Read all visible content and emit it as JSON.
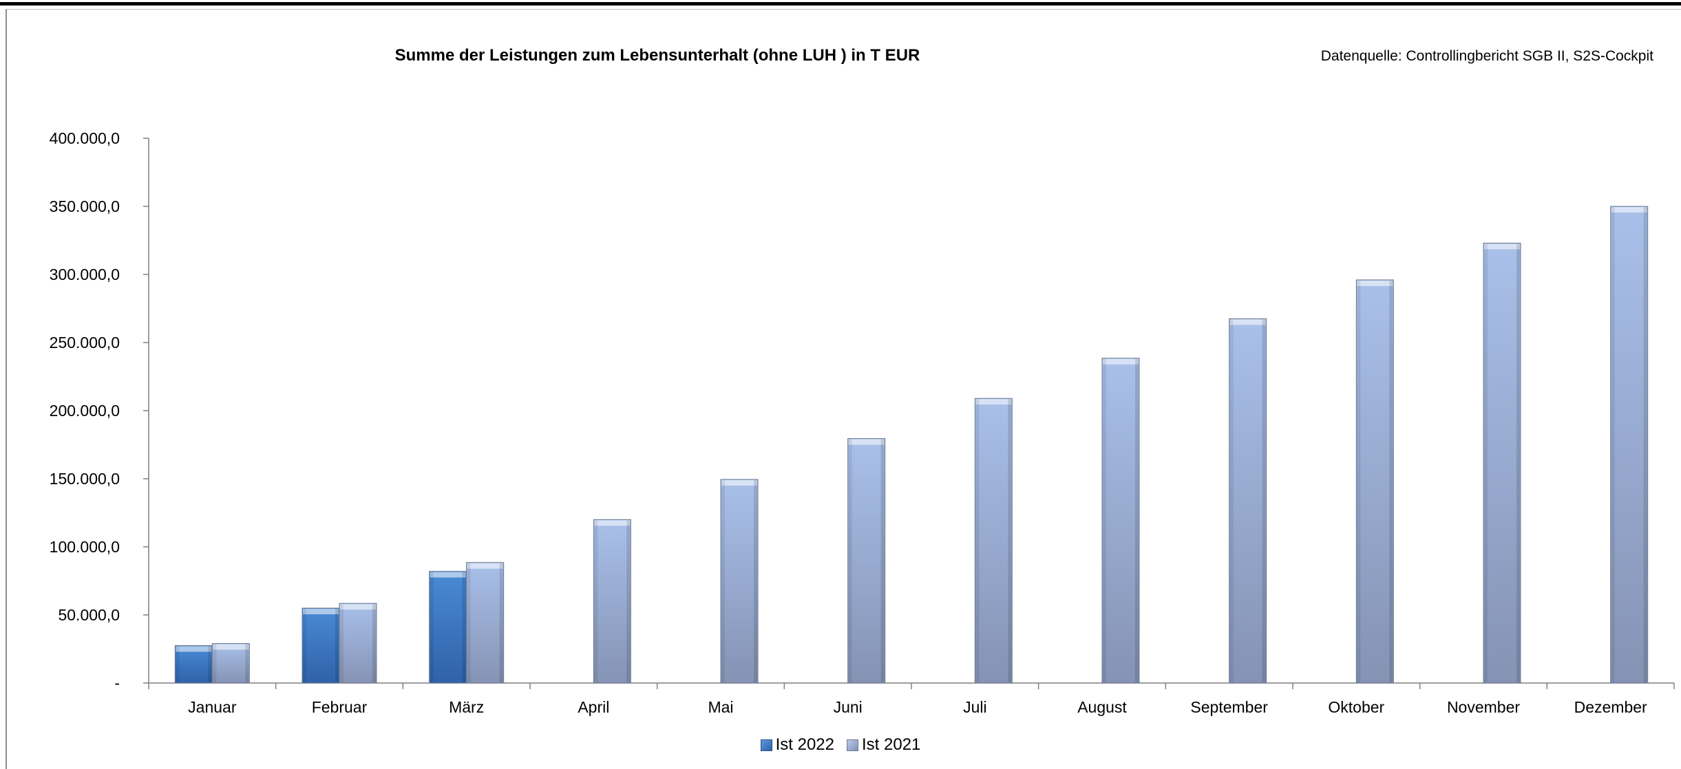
{
  "chart_data": {
    "type": "bar",
    "title": "Summe der Leistungen zum Lebensunterhalt (ohne LUH ) in T EUR",
    "source_note": "Datenquelle: Controllingbericht SGB II, S2S-Cockpit",
    "categories": [
      "Januar",
      "Februar",
      "März",
      "April",
      "Mai",
      "Juni",
      "Juli",
      "August",
      "September",
      "Oktober",
      "November",
      "Dezember"
    ],
    "series": [
      {
        "name": "Ist 2022",
        "color": "#3a78c8",
        "values": [
          27500,
          55000,
          82000,
          null,
          null,
          null,
          null,
          null,
          null,
          null,
          null,
          null
        ]
      },
      {
        "name": "Ist 2021",
        "color": "#9fb3db",
        "values": [
          29000,
          58500,
          88500,
          120000,
          149500,
          179500,
          209000,
          238500,
          267500,
          296000,
          323000,
          350000
        ]
      }
    ],
    "ylim": [
      0,
      400000
    ],
    "y_ticks": [
      0,
      50000,
      100000,
      150000,
      200000,
      250000,
      300000,
      350000,
      400000
    ],
    "y_tick_labels": [
      "-",
      "50.000,0",
      "100.000,0",
      "150.000,0",
      "200.000,0",
      "250.000,0",
      "300.000,0",
      "350.000,0",
      "400.000,0"
    ],
    "grid": false,
    "legend_position": "bottom",
    "xlabel": "",
    "ylabel": ""
  }
}
